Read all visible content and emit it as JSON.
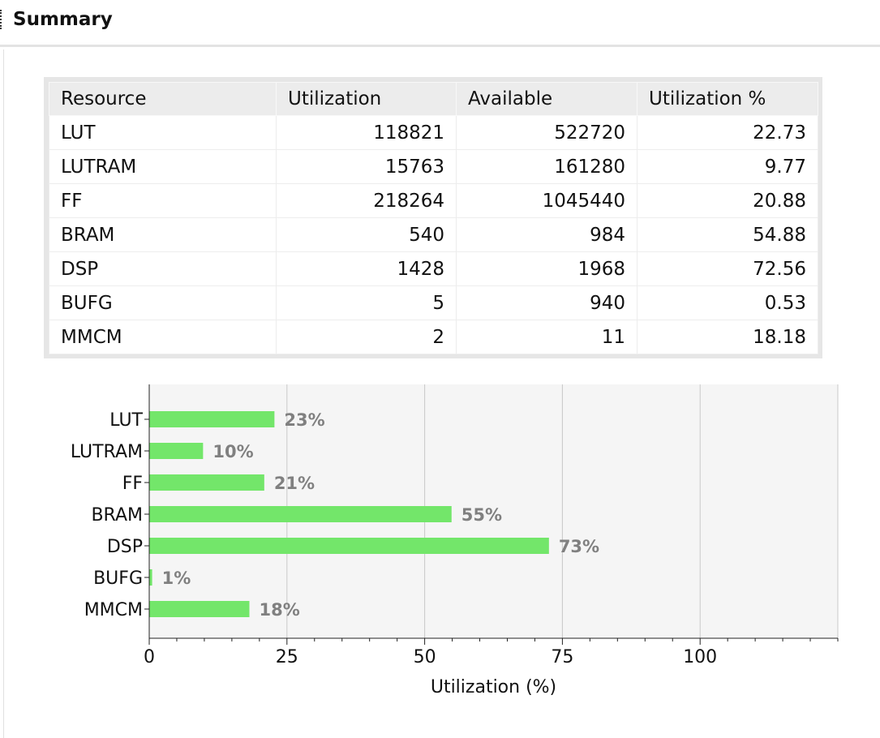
{
  "panel": {
    "title": "Summary"
  },
  "table": {
    "columns": [
      "Resource",
      "Utilization",
      "Available",
      "Utilization %"
    ],
    "rows": [
      {
        "resource": "LUT",
        "utilization": "118821",
        "available": "522720",
        "percent": "22.73"
      },
      {
        "resource": "LUTRAM",
        "utilization": "15763",
        "available": "161280",
        "percent": "9.77"
      },
      {
        "resource": "FF",
        "utilization": "218264",
        "available": "1045440",
        "percent": "20.88"
      },
      {
        "resource": "BRAM",
        "utilization": "540",
        "available": "984",
        "percent": "54.88"
      },
      {
        "resource": "DSP",
        "utilization": "1428",
        "available": "1968",
        "percent": "72.56"
      },
      {
        "resource": "BUFG",
        "utilization": "5",
        "available": "940",
        "percent": "0.53"
      },
      {
        "resource": "MMCM",
        "utilization": "2",
        "available": "11",
        "percent": "18.18"
      }
    ]
  },
  "chart_data": {
    "type": "bar",
    "orientation": "horizontal",
    "categories": [
      "LUT",
      "LUTRAM",
      "FF",
      "BRAM",
      "DSP",
      "BUFG",
      "MMCM"
    ],
    "values": [
      22.73,
      9.77,
      20.88,
      54.88,
      72.56,
      0.53,
      18.18
    ],
    "data_labels": [
      "23%",
      "10%",
      "21%",
      "55%",
      "73%",
      "1%",
      "18%"
    ],
    "xlabel": "Utilization (%)",
    "xlim": [
      0,
      125
    ],
    "xticks": [
      0,
      25,
      50,
      75,
      100
    ],
    "grid": true,
    "colors": {
      "bar": "#73e66a",
      "plot_bg": "#f5f5f5",
      "grid": "#c8c8c8",
      "label": "#808080"
    }
  }
}
